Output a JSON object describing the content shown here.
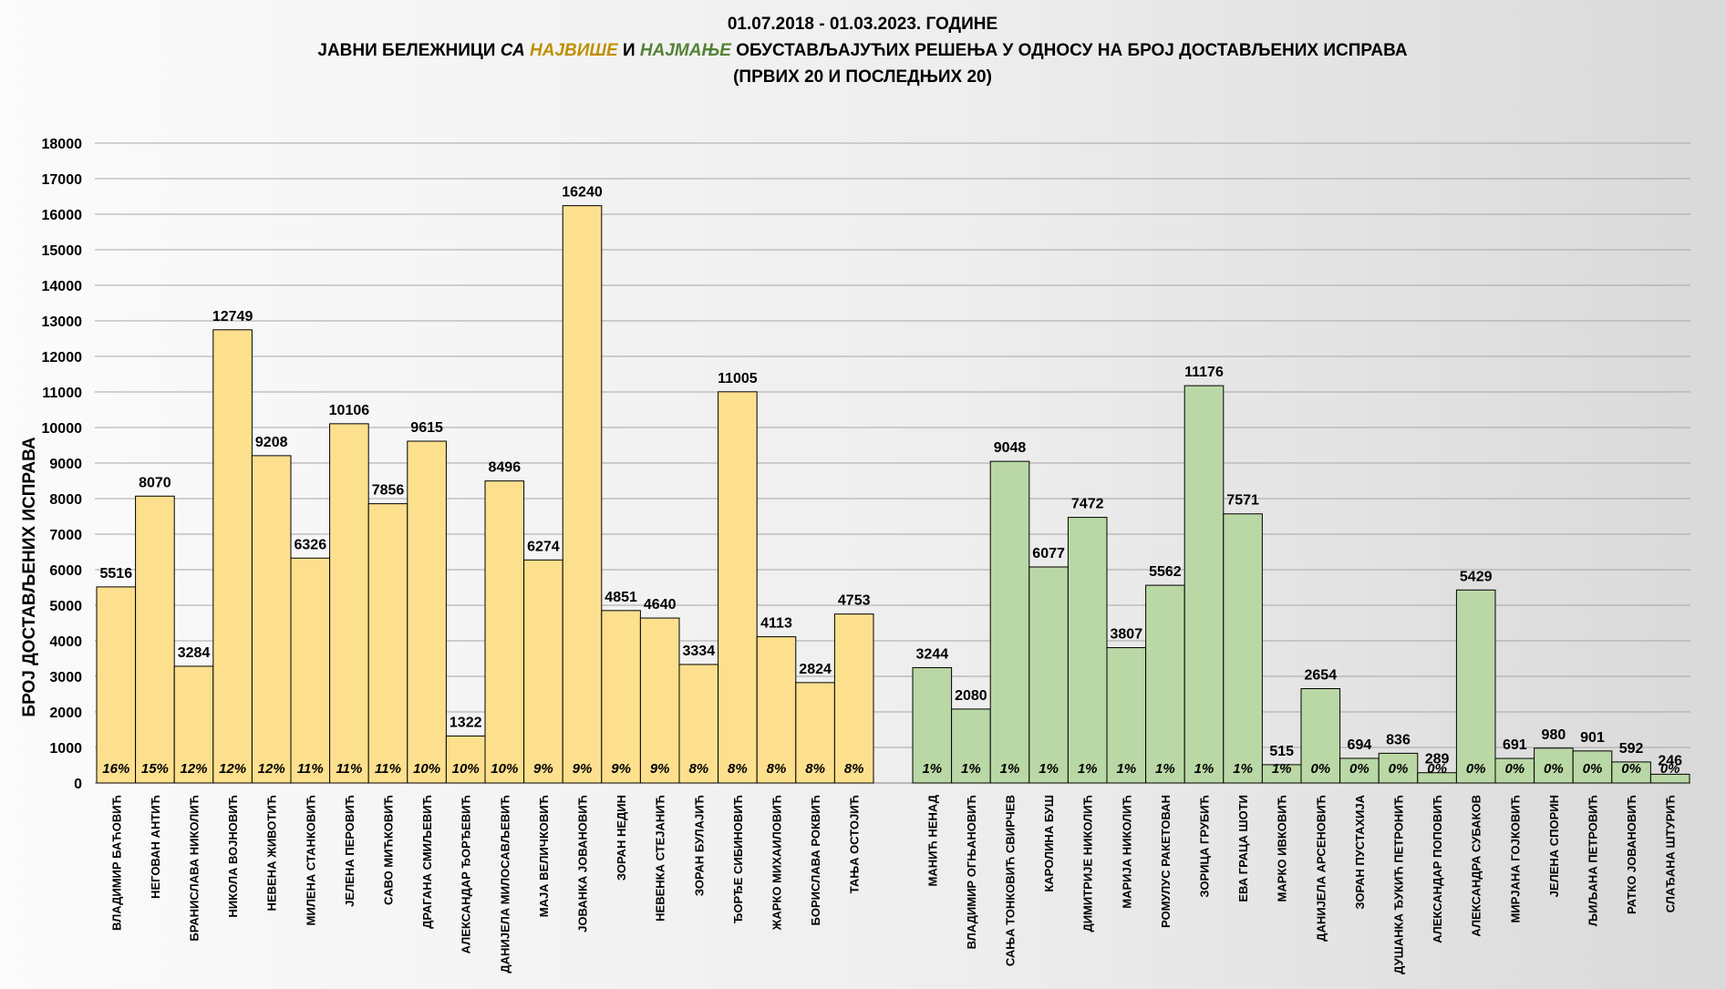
{
  "title": {
    "line1": "01.07.2018  - 01.03.2023.  ГОДИНЕ",
    "line2_a": "ЈАВНИ БЕЛЕЖНИЦИ ",
    "line2_b": "СА ",
    "line2_c": "НАЈВИШЕ",
    "line2_d": " И ",
    "line2_e": "НАЈМАЊЕ",
    "line2_f": " ОБУСТАВЉАЈУЋИХ РЕШЕЊА У ОДНОСУ НА БРОЈ ДОСТАВЉЕНИХ ИСПРАВА",
    "line3": "(ПРВИХ 20 И ПОСЛЕДЊИХ 20)"
  },
  "colors": {
    "highest": "#fde08e",
    "lowest": "#bad8a5",
    "highest_text": "#bf9000",
    "lowest_text": "#548235",
    "grid": "#a6a6a6"
  },
  "chart_data": {
    "type": "bar",
    "ylabel": "БРОЈ ДОСТАВЉЕНИХ ИСПРАВА",
    "ylim": [
      0,
      18000
    ],
    "yticks": [
      0,
      1000,
      2000,
      3000,
      4000,
      5000,
      6000,
      7000,
      8000,
      9000,
      10000,
      11000,
      12000,
      13000,
      14000,
      15000,
      16000,
      17000,
      18000
    ],
    "grid": true,
    "series": [
      {
        "group": "highest",
        "categories": [
          "ВЛАДИМИР БАЋОВИЋ",
          "НЕГОВАН АНТИЋ",
          "БРАНИСЛАВА НИКОЛИЋ",
          "НИКОЛА ВОЈНОВИЋ",
          "НЕВЕНА ЖИВОТИЋ",
          "МИЛЕНА СТАНКОВИЋ",
          "ЈЕЛЕНА ПЕРОВИЋ",
          "САВО МИЋКОВИЋ",
          "ДРАГАНА СМИЉЕВИЋ",
          "АЛЕКСАНДАР ЂОРЂЕВИЋ",
          "ДАНИЈЕЛА МИЛОСАВЉЕВИЋ",
          "МАЈА ВЕЛИЧКОВИЋ",
          "ЈОВАНКА ЈОВАНОВИЋ",
          "ЗОРАН НЕДИН",
          "НЕВЕНКА СТЕЈАНИЋ",
          "ЗОРАН БУЛАЈИЋ",
          "ЂОРЂЕ СИБИНОВИЋ",
          "ЖАРКО МИХАИЛОВИЋ",
          "БОРИСЛАВА РОКВИЋ",
          "ТАЊА ОСТОЈИЋ"
        ],
        "values": [
          5516,
          8070,
          3284,
          12749,
          9208,
          6326,
          10106,
          7856,
          9615,
          1322,
          8496,
          6274,
          16240,
          4851,
          4640,
          3334,
          11005,
          4113,
          2824,
          4753
        ],
        "percent": [
          "16%",
          "15%",
          "12%",
          "12%",
          "12%",
          "11%",
          "11%",
          "11%",
          "10%",
          "10%",
          "10%",
          "9%",
          "9%",
          "9%",
          "9%",
          "8%",
          "8%",
          "8%",
          "8%",
          "8%"
        ]
      },
      {
        "group": "lowest",
        "categories": [
          "МАНИЋ  НЕНАД",
          "ВЛАДИМИР ОГЊАНОВИЋ",
          "САЊА ТОНКОВИЋ  СВИРЧЕВ",
          "КАРОЛИНА БУШ",
          "ДИМИТРИЈЕ НИКОЛИЋ",
          "МАРИЈА НИКОЛИЋ",
          "РОМУЛУС РАКЕТОВАН",
          "ЗОРИЦА ГРУБИЋ",
          "ЕВА ГРАЦА ШОТИ",
          "МАРКО ИВКОВИЋ",
          "ДАНИЈЕЛА АРСЕНОВИЋ",
          "ЗОРАН ПУСТАХИЈА",
          "ДУШАНКА ЂУКИЋ ПЕТРОНИЋ",
          "АЛЕКСАНДАР ПОПОВИЋ",
          "АЛЕКСАНДРА СУБАКОВ",
          "МИРЈАНА ГОЈКОВИЋ",
          "ЈЕЛЕНА СПОРИН",
          "ЉИЉАНА ПЕТРОВИЋ",
          "РАТКО ЈОВАНОВИЋ",
          "СЛАЂАНА ШТУРИЋ"
        ],
        "values": [
          3244,
          2080,
          9048,
          6077,
          7472,
          3807,
          5562,
          11176,
          7571,
          515,
          2654,
          694,
          836,
          289,
          5429,
          691,
          980,
          901,
          592,
          246
        ],
        "percent": [
          "1%",
          "1%",
          "1%",
          "1%",
          "1%",
          "1%",
          "1%",
          "1%",
          "1%",
          "1%",
          "0%",
          "0%",
          "0%",
          "0%",
          "0%",
          "0%",
          "0%",
          "0%",
          "0%",
          "0%"
        ]
      }
    ]
  }
}
